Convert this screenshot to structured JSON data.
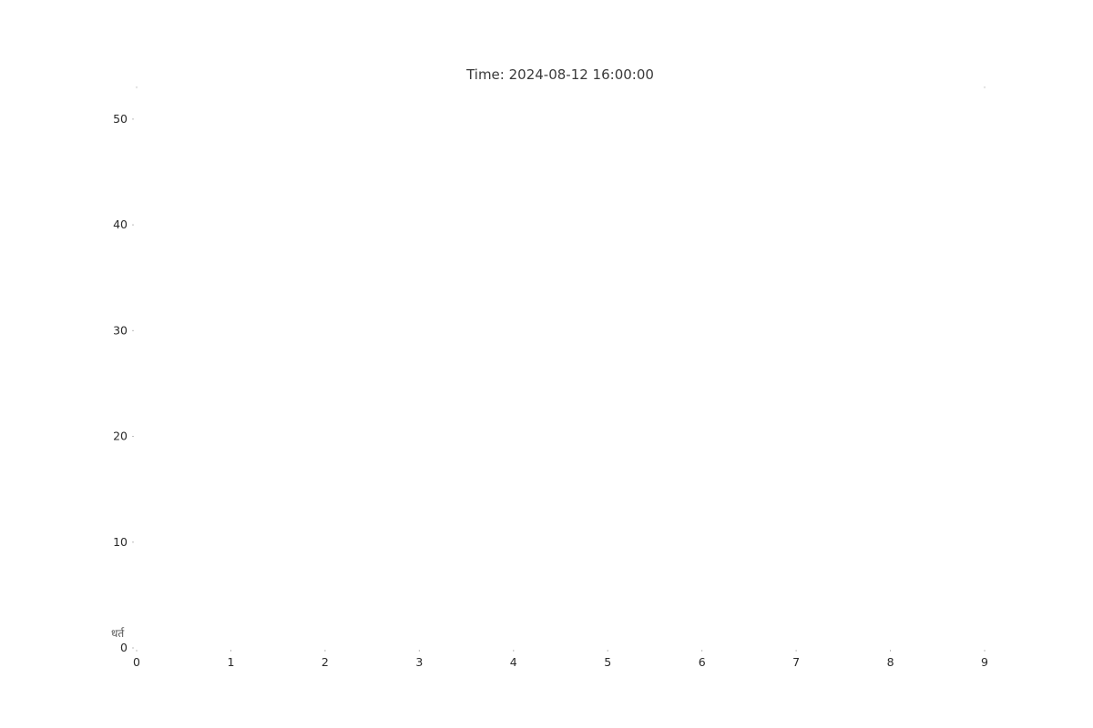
{
  "chart_data": {
    "type": "bar",
    "title": "Time: 2024-08-12 16:00:00",
    "xlabel": "",
    "ylabel": "",
    "xlim": [
      0,
      9
    ],
    "ylim": [
      0,
      53
    ],
    "x_ticks": [
      "0",
      "1",
      "2",
      "3",
      "4",
      "5",
      "6",
      "7",
      "8",
      "9"
    ],
    "y_ticks": [
      "0",
      "10",
      "20",
      "30",
      "40",
      "50"
    ],
    "x_tick_values": [
      0,
      1,
      2,
      3,
      4,
      5,
      6,
      7,
      8,
      9
    ],
    "y_tick_values": [
      0,
      10,
      20,
      30,
      40,
      50
    ],
    "series": [],
    "grid": false,
    "stray_label": "धर्त"
  }
}
